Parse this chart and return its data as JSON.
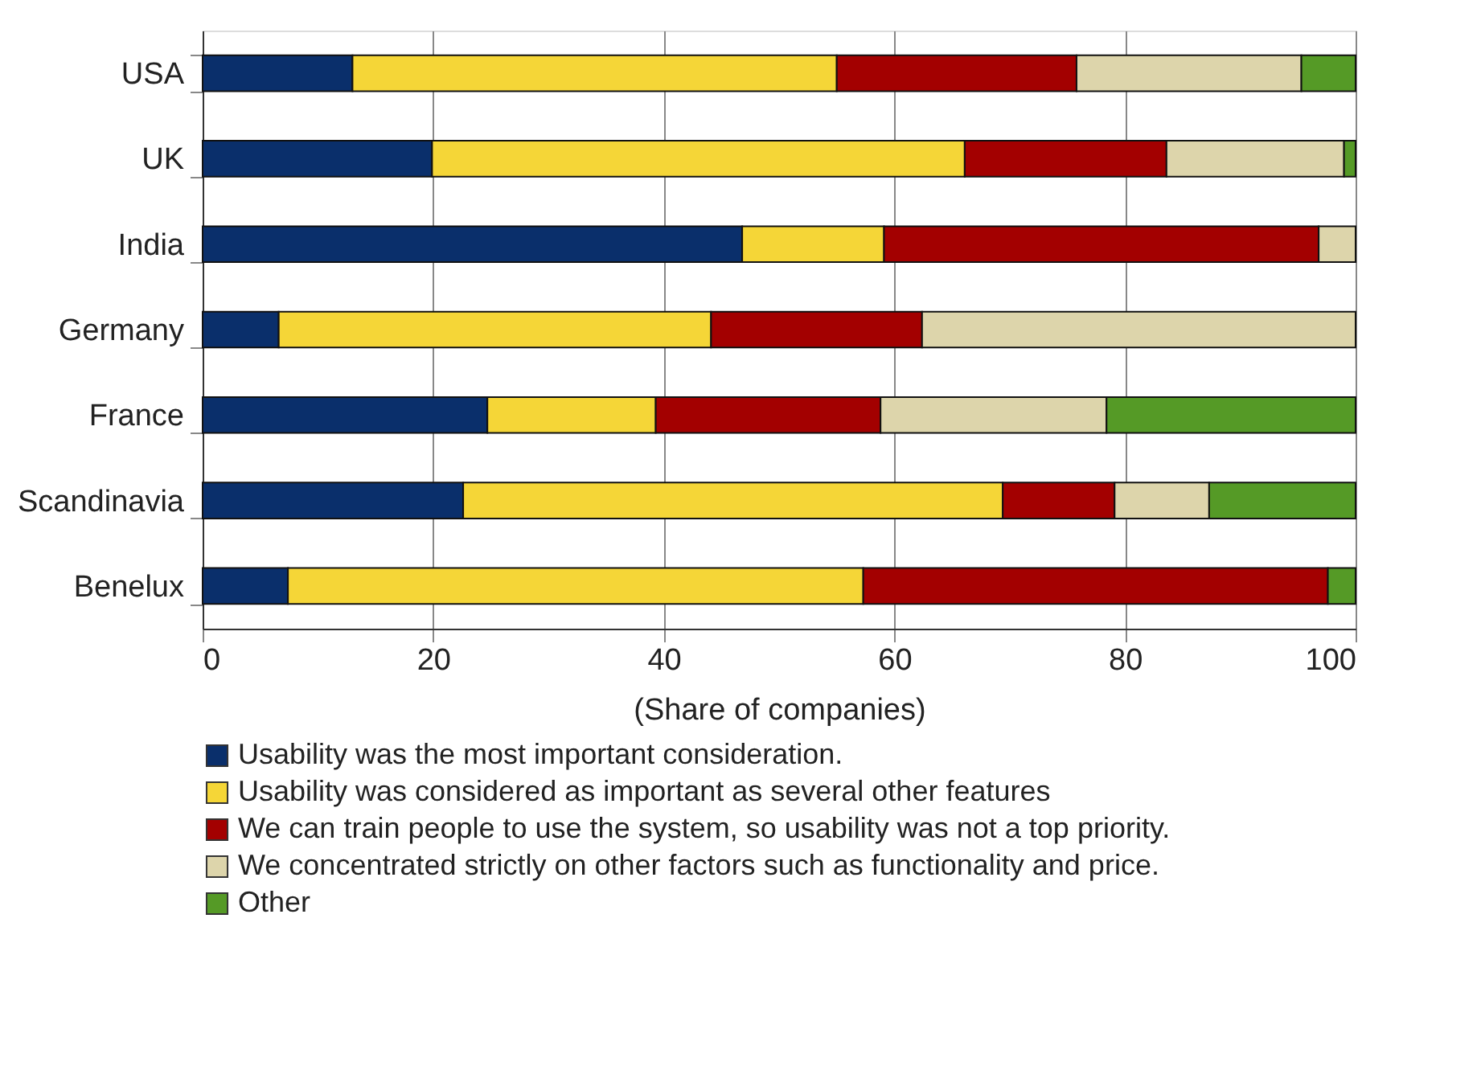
{
  "chart_data": {
    "type": "bar",
    "orientation": "horizontal",
    "stacked": true,
    "categories": [
      "USA",
      "UK",
      "India",
      "Germany",
      "France",
      "Scandinavia",
      "Benelux"
    ],
    "series": [
      {
        "name": "Usability was the most important consideration.",
        "color": "#0a2f6b",
        "values": [
          13.0,
          19.9,
          46.8,
          6.6,
          24.7,
          22.6,
          7.4
        ]
      },
      {
        "name": "Usability was considered as important as several other features",
        "color": "#f5d637",
        "values": [
          42.0,
          46.2,
          12.3,
          37.5,
          14.6,
          46.8,
          49.9
        ]
      },
      {
        "name": "We can train people to use the system, so usability was not a top priority.",
        "color": "#a30000",
        "values": [
          20.8,
          17.5,
          37.7,
          18.3,
          19.5,
          9.7,
          40.3
        ]
      },
      {
        "name": "We concentrated strictly on other factors such as functionality and price.",
        "color": "#ddd5ab",
        "values": [
          19.5,
          15.4,
          3.2,
          37.6,
          19.6,
          8.2,
          0
        ]
      },
      {
        "name": "Other",
        "color": "#559a26",
        "values": [
          4.7,
          1.0,
          0,
          0,
          21.6,
          12.7,
          2.4
        ]
      }
    ],
    "xlim": [
      0,
      100
    ],
    "xticks": [
      0,
      20,
      40,
      60,
      80,
      100
    ],
    "xlabel": "(Share of companies)",
    "grid": "x",
    "legend": "bottom"
  }
}
